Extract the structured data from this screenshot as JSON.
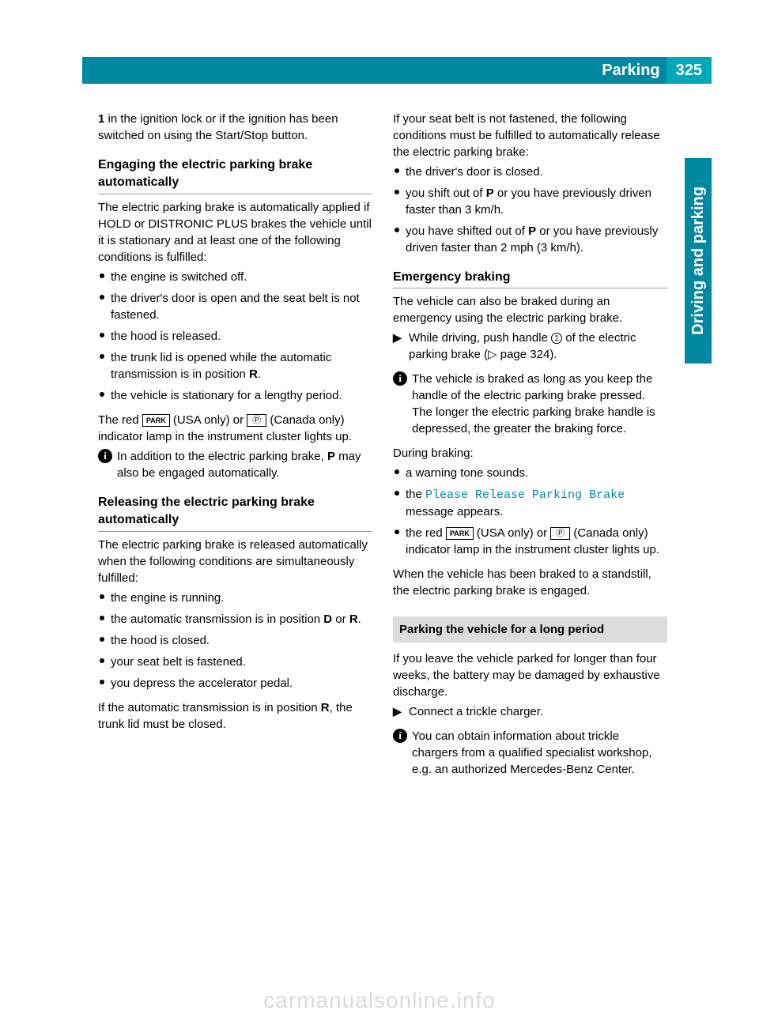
{
  "header": {
    "title": "Parking",
    "page_number": "325"
  },
  "side_tab": "Driving and parking",
  "left_column": {
    "intro_continue": {
      "bold_prefix": "1",
      "text": " in the ignition lock or if the ignition has been switched on using the Start/Stop button."
    },
    "heading_engage": "Engaging the electric parking brake automatically",
    "engage_para": "The electric parking brake is automatically applied if HOLD or DISTRONIC PLUS brakes the vehicle until it is stationary and at least one of the following conditions is fulfilled:",
    "engage_bullets": [
      "the engine is switched off.",
      "the driver's door is open and the seat belt is not fastened.",
      "the hood is released.",
      "the trunk lid is opened while the automatic transmission is in position R.",
      "the vehicle is stationary for a lengthy period."
    ],
    "engage_bullet_4_bold": "R",
    "engage_indicator_pre": "The red ",
    "engage_indicator_park": "PARK",
    "engage_indicator_mid": " (USA only) or ",
    "engage_indicator_p": "Ⓟ",
    "engage_indicator_post": " (Canada only) indicator lamp in the instrument cluster lights up.",
    "engage_info_pre": "In addition to the electric parking brake, ",
    "engage_info_bold": "P",
    "engage_info_post": " may also be engaged automatically.",
    "heading_release": "Releasing the electric parking brake automatically",
    "release_para": "The electric parking brake is released automatically when the following conditions are simultaneously fulfilled:",
    "release_bullets": [
      "the engine is running.",
      "the automatic transmission is in position D or R.",
      "the hood is closed.",
      "your seat belt is fastened.",
      "you depress the accelerator pedal."
    ],
    "release_bullet_2_bold_d": "D",
    "release_bullet_2_bold_r": "R",
    "release_end_pre": "If the automatic transmission is in position ",
    "release_end_bold": "R",
    "release_end_post": ", the trunk lid must be closed."
  },
  "right_column": {
    "seatbelt_para": "If your seat belt is not fastened, the following conditions must be fulfilled to automatically release the electric parking brake:",
    "seatbelt_bullets": {
      "b1": "the driver's door is closed.",
      "b2_pre": "you shift out of ",
      "b2_bold": "P",
      "b2_post": " or you have previously driven faster than 3 km/h.",
      "b3_pre": "you have shifted out of ",
      "b3_bold": "P",
      "b3_post": " or you have previously driven faster than 2 mph (3 km/h)."
    },
    "heading_emergency": "Emergency braking",
    "emergency_para": "The vehicle can also be braked during an emergency using the electric parking brake.",
    "emergency_action_pre": "While driving, push handle ",
    "emergency_action_circle": "1",
    "emergency_action_post": " of the electric parking brake (▷ page 324).",
    "emergency_info": "The vehicle is braked as long as you keep the handle of the electric parking brake pressed. The longer the electric parking brake handle is depressed, the greater the braking force.",
    "during_label": "During braking:",
    "during_bullets": {
      "b1": "a warning tone sounds.",
      "b2_pre": "the ",
      "b2_msg": "Please Release Parking Brake",
      "b2_post": " message appears.",
      "b3_pre": "the red ",
      "b3_park": "PARK",
      "b3_mid": " (USA only) or ",
      "b3_p": "Ⓟ",
      "b3_post": " (Canada only) indicator lamp in the instrument cluster lights up."
    },
    "standstill": "When the vehicle has been braked to a standstill, the electric parking brake is engaged.",
    "heading_long_period": "Parking the vehicle for a long period",
    "long_para": "If you leave the vehicle parked for longer than four weeks, the battery may be damaged by exhaustive discharge.",
    "long_action": "Connect a trickle charger.",
    "long_info": "You can obtain information about trickle chargers from a qualified specialist workshop, e.g. an authorized Mercedes-Benz Center."
  },
  "watermark": "carmanualsonline.info"
}
